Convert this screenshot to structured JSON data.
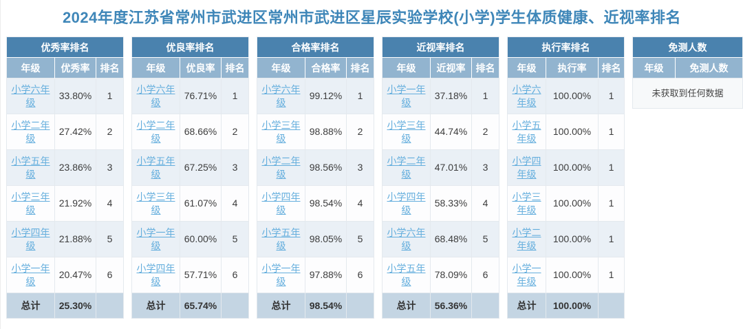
{
  "page_title": "2024年度江苏省常州市武进区常州市武进区星辰实验学校(小学)学生体质健康、近视率排名",
  "colors": {
    "title_text": "#3e86b8",
    "table_header": "#4a82ae",
    "column_header": "#92b4cf",
    "row_odd": "#eaf0f6",
    "row_even": "#fdfdfe",
    "total_row": "#c4d5e3",
    "link": "#64aedd"
  },
  "tables": [
    {
      "id": "excellent-rate",
      "title": "优秀率排名",
      "columns": [
        "年级",
        "优秀率",
        "排名"
      ],
      "rows": [
        {
          "grade": "小学六年级",
          "value": "33.80%",
          "rank": "1"
        },
        {
          "grade": "小学二年级",
          "value": "27.42%",
          "rank": "2"
        },
        {
          "grade": "小学五年级",
          "value": "23.86%",
          "rank": "3"
        },
        {
          "grade": "小学三年级",
          "value": "21.92%",
          "rank": "4"
        },
        {
          "grade": "小学四年级",
          "value": "21.88%",
          "rank": "5"
        },
        {
          "grade": "小学一年级",
          "value": "20.47%",
          "rank": "6"
        }
      ],
      "total_label": "总计",
      "total_value": "25.30%"
    },
    {
      "id": "good-rate",
      "title": "优良率排名",
      "columns": [
        "年级",
        "优良率",
        "排名"
      ],
      "rows": [
        {
          "grade": "小学六年级",
          "value": "76.71%",
          "rank": "1"
        },
        {
          "grade": "小学二年级",
          "value": "68.66%",
          "rank": "2"
        },
        {
          "grade": "小学五年级",
          "value": "67.25%",
          "rank": "3"
        },
        {
          "grade": "小学三年级",
          "value": "61.07%",
          "rank": "4"
        },
        {
          "grade": "小学一年级",
          "value": "60.00%",
          "rank": "5"
        },
        {
          "grade": "小学四年级",
          "value": "57.71%",
          "rank": "6"
        }
      ],
      "total_label": "总计",
      "total_value": "65.74%"
    },
    {
      "id": "pass-rate",
      "title": "合格率排名",
      "columns": [
        "年级",
        "合格率",
        "排名"
      ],
      "rows": [
        {
          "grade": "小学六年级",
          "value": "99.12%",
          "rank": "1"
        },
        {
          "grade": "小学三年级",
          "value": "98.88%",
          "rank": "2"
        },
        {
          "grade": "小学二年级",
          "value": "98.56%",
          "rank": "3"
        },
        {
          "grade": "小学四年级",
          "value": "98.54%",
          "rank": "4"
        },
        {
          "grade": "小学五年级",
          "value": "98.05%",
          "rank": "5"
        },
        {
          "grade": "小学一年级",
          "value": "97.88%",
          "rank": "6"
        }
      ],
      "total_label": "总计",
      "total_value": "98.54%"
    },
    {
      "id": "myopia-rate",
      "title": "近视率排名",
      "columns": [
        "年级",
        "近视率",
        "排名"
      ],
      "rows": [
        {
          "grade": "小学一年级",
          "value": "37.18%",
          "rank": "1"
        },
        {
          "grade": "小学三年级",
          "value": "44.74%",
          "rank": "2"
        },
        {
          "grade": "小学二年级",
          "value": "47.01%",
          "rank": "3"
        },
        {
          "grade": "小学四年级",
          "value": "58.33%",
          "rank": "4"
        },
        {
          "grade": "小学六年级",
          "value": "68.48%",
          "rank": "5"
        },
        {
          "grade": "小学五年级",
          "value": "78.09%",
          "rank": "6"
        }
      ],
      "total_label": "总计",
      "total_value": "56.36%"
    },
    {
      "id": "execution-rate",
      "title": "执行率排名",
      "columns": [
        "年级",
        "执行率",
        "排名"
      ],
      "rows": [
        {
          "grade": "小学六年级",
          "value": "100.00%",
          "rank": "1"
        },
        {
          "grade": "小学五年级",
          "value": "100.00%",
          "rank": "1"
        },
        {
          "grade": "小学四年级",
          "value": "100.00%",
          "rank": "1"
        },
        {
          "grade": "小学三年级",
          "value": "100.00%",
          "rank": "1"
        },
        {
          "grade": "小学二年级",
          "value": "100.00%",
          "rank": "1"
        },
        {
          "grade": "小学一年级",
          "value": "100.00%",
          "rank": "1"
        }
      ],
      "total_label": "总计",
      "total_value": "100.00%"
    },
    {
      "id": "exempt-count",
      "title": "免测人数",
      "columns": [
        "年级",
        "免测人数"
      ],
      "rows": [],
      "empty_text": "未获取到任何数据"
    }
  ]
}
